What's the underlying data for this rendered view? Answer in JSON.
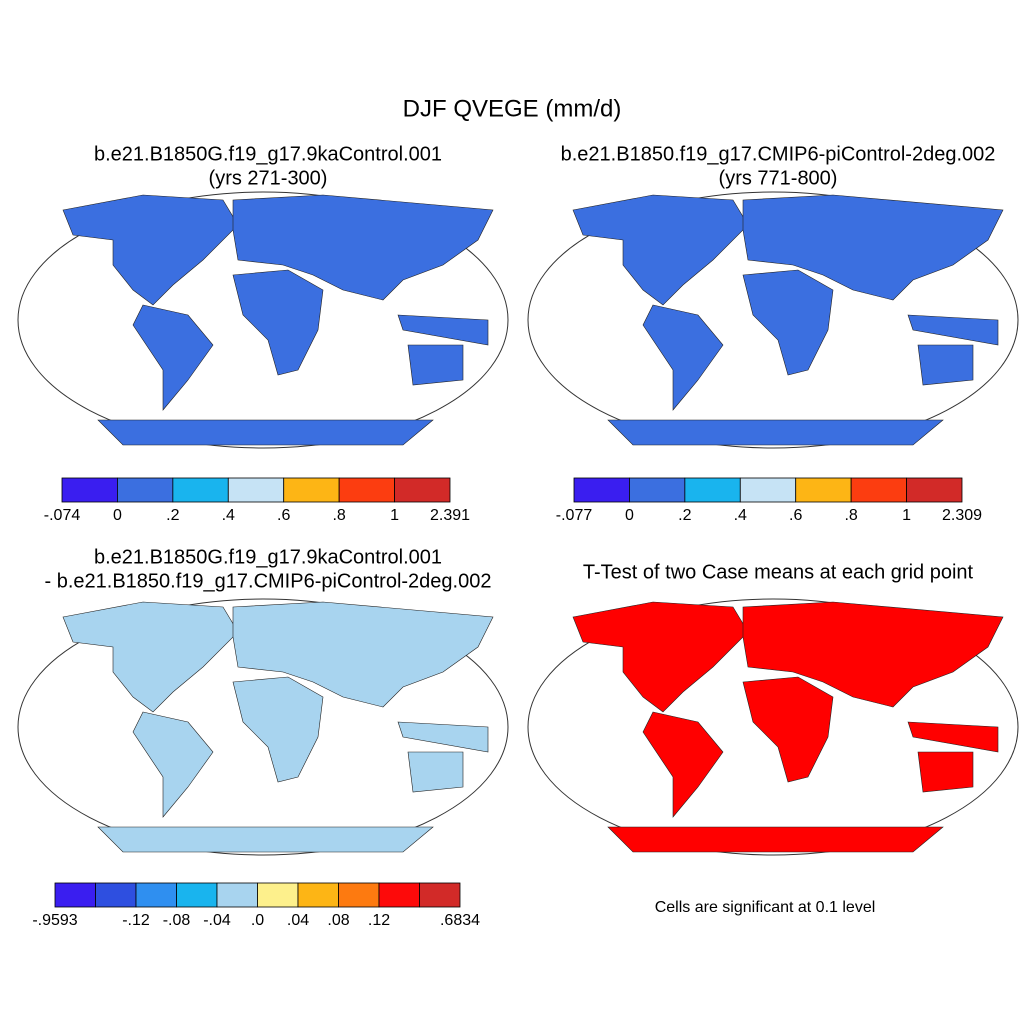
{
  "title": "DJF QVEGE (mm/d)",
  "panels": [
    {
      "title_lines": [
        "b.e21.B1850G.f19_g17.9kaControl.001",
        "(yrs 271-300)"
      ],
      "land_color": "#3b6fe0",
      "colorbar": {
        "colors": [
          "#3a1ef0",
          "#3b6fe0",
          "#19b4ee",
          "#c6e3f5",
          "#fdb515",
          "#fc3d10",
          "#d22a28"
        ],
        "labels": [
          "-.074",
          "0",
          ".2",
          ".4",
          ".6",
          ".8",
          "1",
          "2.391"
        ]
      }
    },
    {
      "title_lines": [
        "b.e21.B1850.f19_g17.CMIP6-piControl-2deg.002",
        "(yrs 771-800)"
      ],
      "land_color": "#3b6fe0",
      "colorbar": {
        "colors": [
          "#3a1ef0",
          "#3b6fe0",
          "#19b4ee",
          "#c6e3f5",
          "#fdb515",
          "#fc3d10",
          "#d22a28"
        ],
        "labels": [
          "-.077",
          "0",
          ".2",
          ".4",
          ".6",
          ".8",
          "1",
          "2.309"
        ]
      }
    },
    {
      "title_lines": [
        "b.e21.B1850G.f19_g17.9kaControl.001",
        "- b.e21.B1850.f19_g17.CMIP6-piControl-2deg.002"
      ],
      "land_color": "#a8d4ef",
      "colorbar": {
        "colors": [
          "#3a1ef0",
          "#2e4fe0",
          "#2f8ff0",
          "#19b4ee",
          "#a8d4ef",
          "#fdf08c",
          "#fdb515",
          "#fd7a10",
          "#fd0a0a",
          "#d22a28"
        ],
        "labels": [
          "-.9593",
          null,
          "-.12",
          "-.08",
          "-.04",
          ".0",
          ".04",
          ".08",
          ".12",
          null,
          ".6834"
        ]
      }
    },
    {
      "title_lines": [
        "T-Test of two Case means at each grid point"
      ],
      "land_color": "#ff0000",
      "note": "Cells are significant at 0.1 level"
    }
  ]
}
